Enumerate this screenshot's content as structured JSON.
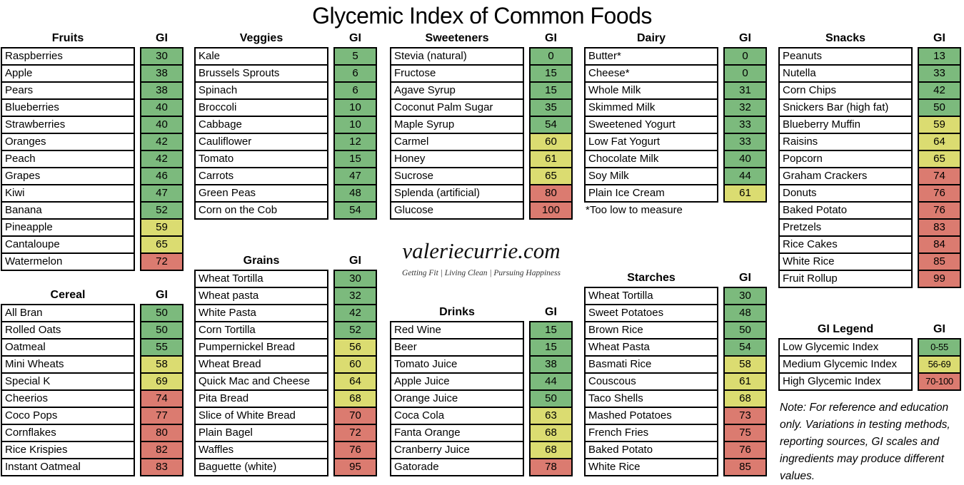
{
  "title": "Glycemic Index of Common Foods",
  "gi_label": "GI",
  "colors": {
    "low": "#7CBA7D",
    "medium": "#DBDC71",
    "high": "#DB7B70",
    "border": "#000000"
  },
  "branding": {
    "site": "valeriecurrie.com",
    "tagline": "Getting Fit  |  Living Clean  |  Pursuing Happiness"
  },
  "dairy_footnote": "*Too low to measure",
  "note": "Note: For reference and education only.  Variations in testing methods, reporting sources, GI scales and ingredients may produce different values.",
  "chart_data": {
    "type": "table",
    "title": "Glycemic Index of Common Foods",
    "value_label": "GI",
    "color_thresholds": {
      "low_max": 55,
      "medium_max": 69,
      "high_max": 100
    },
    "sections": [
      {
        "id": "fruits",
        "label": "Fruits",
        "items": [
          {
            "name": "Raspberries",
            "gi": 30
          },
          {
            "name": "Apple",
            "gi": 38
          },
          {
            "name": "Pears",
            "gi": 38
          },
          {
            "name": "Blueberries",
            "gi": 40
          },
          {
            "name": "Strawberries",
            "gi": 40
          },
          {
            "name": "Oranges",
            "gi": 42
          },
          {
            "name": "Peach",
            "gi": 42
          },
          {
            "name": "Grapes",
            "gi": 46
          },
          {
            "name": "Kiwi",
            "gi": 47
          },
          {
            "name": "Banana",
            "gi": 52
          },
          {
            "name": "Pineapple",
            "gi": 59
          },
          {
            "name": "Cantaloupe",
            "gi": 65
          },
          {
            "name": "Watermelon",
            "gi": 72
          }
        ]
      },
      {
        "id": "cereal",
        "label": "Cereal",
        "items": [
          {
            "name": "All Bran",
            "gi": 50
          },
          {
            "name": "Rolled Oats",
            "gi": 50
          },
          {
            "name": "Oatmeal",
            "gi": 55
          },
          {
            "name": "Mini Wheats",
            "gi": 58
          },
          {
            "name": "Special K",
            "gi": 69
          },
          {
            "name": "Cheerios",
            "gi": 74
          },
          {
            "name": "Coco Pops",
            "gi": 77
          },
          {
            "name": "Cornflakes",
            "gi": 80
          },
          {
            "name": "Rice Krispies",
            "gi": 82
          },
          {
            "name": "Instant Oatmeal",
            "gi": 83
          }
        ]
      },
      {
        "id": "veggies",
        "label": "Veggies",
        "items": [
          {
            "name": "Kale",
            "gi": 5
          },
          {
            "name": "Brussels Sprouts",
            "gi": 6
          },
          {
            "name": "Spinach",
            "gi": 6
          },
          {
            "name": "Broccoli",
            "gi": 10
          },
          {
            "name": "Cabbage",
            "gi": 10
          },
          {
            "name": "Cauliflower",
            "gi": 12
          },
          {
            "name": "Tomato",
            "gi": 15
          },
          {
            "name": "Carrots",
            "gi": 47
          },
          {
            "name": "Green Peas",
            "gi": 48
          },
          {
            "name": "Corn on the Cob",
            "gi": 54
          }
        ]
      },
      {
        "id": "grains",
        "label": "Grains",
        "items": [
          {
            "name": "Wheat Tortilla",
            "gi": 30
          },
          {
            "name": "Wheat pasta",
            "gi": 32
          },
          {
            "name": "White Pasta",
            "gi": 42
          },
          {
            "name": "Corn Tortilla",
            "gi": 52
          },
          {
            "name": "Pumpernickel Bread",
            "gi": 56
          },
          {
            "name": "Wheat Bread",
            "gi": 60
          },
          {
            "name": "Quick Mac and Cheese",
            "gi": 64
          },
          {
            "name": "Pita Bread",
            "gi": 68
          },
          {
            "name": "Slice of White Bread",
            "gi": 70
          },
          {
            "name": "Plain Bagel",
            "gi": 72
          },
          {
            "name": "Waffles",
            "gi": 76
          },
          {
            "name": "Baguette (white)",
            "gi": 95
          }
        ]
      },
      {
        "id": "sweeteners",
        "label": "Sweeteners",
        "items": [
          {
            "name": "Stevia (natural)",
            "gi": 0
          },
          {
            "name": "Fructose",
            "gi": 15
          },
          {
            "name": "Agave Syrup",
            "gi": 15
          },
          {
            "name": "Coconut Palm Sugar",
            "gi": 35
          },
          {
            "name": "Maple Syrup",
            "gi": 54
          },
          {
            "name": "Carmel",
            "gi": 60
          },
          {
            "name": "Honey",
            "gi": 61
          },
          {
            "name": "Sucrose",
            "gi": 65
          },
          {
            "name": "Splenda (artificial)",
            "gi": 80
          },
          {
            "name": "Glucose",
            "gi": 100
          }
        ]
      },
      {
        "id": "drinks",
        "label": "Drinks",
        "items": [
          {
            "name": "Red Wine",
            "gi": 15
          },
          {
            "name": "Beer",
            "gi": 15
          },
          {
            "name": "Tomato Juice",
            "gi": 38
          },
          {
            "name": "Apple Juice",
            "gi": 44
          },
          {
            "name": "Orange Juice",
            "gi": 50
          },
          {
            "name": "Coca Cola",
            "gi": 63
          },
          {
            "name": "Fanta Orange",
            "gi": 68
          },
          {
            "name": "Cranberry Juice",
            "gi": 68
          },
          {
            "name": "Gatorade",
            "gi": 78
          }
        ]
      },
      {
        "id": "dairy",
        "label": "Dairy",
        "items": [
          {
            "name": "Butter*",
            "gi": 0
          },
          {
            "name": "Cheese*",
            "gi": 0
          },
          {
            "name": "Whole Milk",
            "gi": 31
          },
          {
            "name": "Skimmed Milk",
            "gi": 32
          },
          {
            "name": "Sweetened Yogurt",
            "gi": 33
          },
          {
            "name": "Low Fat Yogurt",
            "gi": 33
          },
          {
            "name": "Chocolate Milk",
            "gi": 40
          },
          {
            "name": "Soy Milk",
            "gi": 44
          },
          {
            "name": "Plain Ice Cream",
            "gi": 61
          }
        ]
      },
      {
        "id": "starches",
        "label": "Starches",
        "items": [
          {
            "name": "Wheat Tortilla",
            "gi": 30
          },
          {
            "name": "Sweet Potatoes",
            "gi": 48
          },
          {
            "name": "Brown Rice",
            "gi": 50
          },
          {
            "name": "Wheat Pasta",
            "gi": 54
          },
          {
            "name": "Basmati Rice",
            "gi": 58
          },
          {
            "name": "Couscous",
            "gi": 61
          },
          {
            "name": "Taco Shells",
            "gi": 68
          },
          {
            "name": "Mashed Potatoes",
            "gi": 73
          },
          {
            "name": "French Fries",
            "gi": 75
          },
          {
            "name": "Baked Potato",
            "gi": 76
          },
          {
            "name": "White Rice",
            "gi": 85
          }
        ]
      },
      {
        "id": "snacks",
        "label": "Snacks",
        "items": [
          {
            "name": "Peanuts",
            "gi": 13
          },
          {
            "name": "Nutella",
            "gi": 33
          },
          {
            "name": "Corn Chips",
            "gi": 42
          },
          {
            "name": "Snickers Bar (high fat)",
            "gi": 50
          },
          {
            "name": "Blueberry Muffin",
            "gi": 59
          },
          {
            "name": "Raisins",
            "gi": 64
          },
          {
            "name": "Popcorn",
            "gi": 65
          },
          {
            "name": "Graham Crackers",
            "gi": 74
          },
          {
            "name": "Donuts",
            "gi": 76
          },
          {
            "name": "Baked Potato",
            "gi": 76
          },
          {
            "name": "Pretzels",
            "gi": 83
          },
          {
            "name": "Rice Cakes",
            "gi": 84
          },
          {
            "name": "White Rice",
            "gi": 85
          },
          {
            "name": "Fruit Rollup",
            "gi": 99
          }
        ]
      }
    ],
    "legend": {
      "id": "legend",
      "label": "GI Legend",
      "items": [
        {
          "name": "Low Glycemic Index",
          "gi": "0-55",
          "level": "low"
        },
        {
          "name": "Medium Glycemic Index",
          "gi": "56-69",
          "level": "medium"
        },
        {
          "name": "High Glycemic Index",
          "gi": "70-100",
          "level": "high"
        }
      ]
    }
  }
}
